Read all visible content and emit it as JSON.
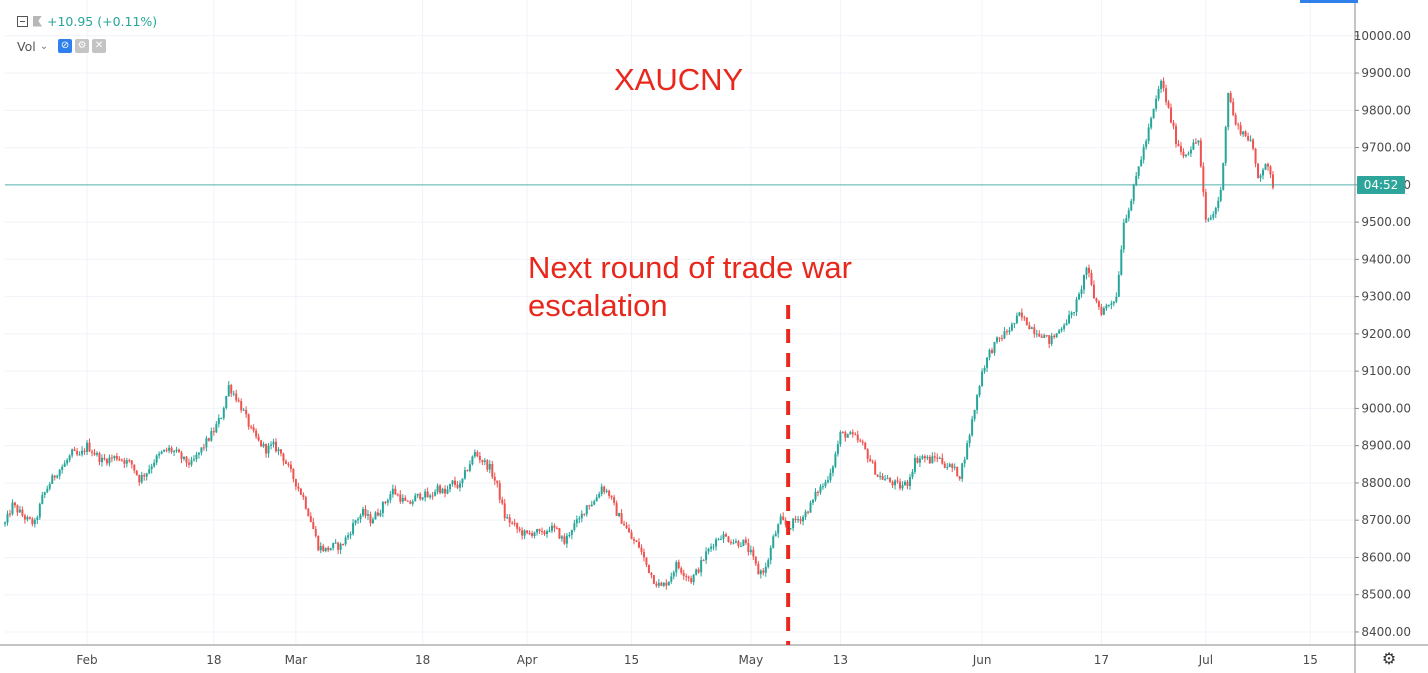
{
  "toolbar": {
    "change_text": "+10.95 (+0.11%)",
    "vol_label": "Vol",
    "caret": "⌄",
    "icons": [
      "collapse-icon",
      "flag-icon",
      "eye-icon",
      "gear-icon",
      "close-icon"
    ]
  },
  "price_badge": "04:52",
  "colors": {
    "up": "#26a69a",
    "down": "#ef5350",
    "annotation": "#e8281c",
    "price_line": "#2ea59a",
    "grid": "#f0f3fa"
  },
  "chart_data": {
    "type": "candlestick",
    "title": "XAUCNY",
    "annotation_lines": [
      "Next round of trade war",
      "escalation"
    ],
    "event_marker_date": "2019-05-06",
    "current_price": 9600,
    "y_ticks": [
      "8400.00",
      "8500.00",
      "8600.00",
      "8700.00",
      "8800.00",
      "8900.00",
      "9000.00",
      "9100.00",
      "9200.00",
      "9300.00",
      "9400.00",
      "9500.00",
      "9600.00",
      "9700.00",
      "9800.00",
      "9900.00",
      "10000.00"
    ],
    "ylim": [
      8365,
      10080
    ],
    "xlim": [
      "2019-01-21",
      "2019-07-21"
    ],
    "x_ticks": [
      {
        "date": "2019-02-01",
        "label": "Feb"
      },
      {
        "date": "2019-02-18",
        "label": "18"
      },
      {
        "date": "2019-03-01",
        "label": "Mar"
      },
      {
        "date": "2019-03-18",
        "label": "18"
      },
      {
        "date": "2019-04-01",
        "label": "Apr"
      },
      {
        "date": "2019-04-15",
        "label": "15"
      },
      {
        "date": "2019-05-01",
        "label": "May"
      },
      {
        "date": "2019-05-13",
        "label": "13"
      },
      {
        "date": "2019-06-01",
        "label": "Jun"
      },
      {
        "date": "2019-06-17",
        "label": "17"
      },
      {
        "date": "2019-07-01",
        "label": "Jul"
      },
      {
        "date": "2019-07-15",
        "label": "15"
      }
    ],
    "close_path": [
      [
        "2019-01-21",
        8690
      ],
      [
        "2019-01-22",
        8740
      ],
      [
        "2019-01-23",
        8720
      ],
      [
        "2019-01-24",
        8700
      ],
      [
        "2019-01-25",
        8690
      ],
      [
        "2019-01-26",
        8760
      ],
      [
        "2019-01-27",
        8800
      ],
      [
        "2019-01-28",
        8830
      ],
      [
        "2019-01-29",
        8850
      ],
      [
        "2019-01-30",
        8880
      ],
      [
        "2019-01-31",
        8870
      ],
      [
        "2019-02-01",
        8900
      ],
      [
        "2019-02-02",
        8880
      ],
      [
        "2019-02-03",
        8860
      ],
      [
        "2019-02-04",
        8865
      ],
      [
        "2019-02-05",
        8870
      ],
      [
        "2019-02-06",
        8860
      ],
      [
        "2019-02-07",
        8850
      ],
      [
        "2019-02-08",
        8810
      ],
      [
        "2019-02-09",
        8830
      ],
      [
        "2019-02-10",
        8860
      ],
      [
        "2019-02-11",
        8880
      ],
      [
        "2019-02-12",
        8890
      ],
      [
        "2019-02-13",
        8880
      ],
      [
        "2019-02-14",
        8860
      ],
      [
        "2019-02-15",
        8850
      ],
      [
        "2019-02-16",
        8880
      ],
      [
        "2019-02-17",
        8910
      ],
      [
        "2019-02-18",
        8940
      ],
      [
        "2019-02-19",
        8980
      ],
      [
        "2019-02-20",
        9060
      ],
      [
        "2019-02-21",
        9030
      ],
      [
        "2019-02-22",
        8990
      ],
      [
        "2019-02-23",
        8940
      ],
      [
        "2019-02-24",
        8910
      ],
      [
        "2019-02-25",
        8890
      ],
      [
        "2019-02-26",
        8900
      ],
      [
        "2019-02-27",
        8880
      ],
      [
        "2019-02-28",
        8840
      ],
      [
        "2019-03-01",
        8800
      ],
      [
        "2019-03-02",
        8760
      ],
      [
        "2019-03-03",
        8700
      ],
      [
        "2019-03-04",
        8630
      ],
      [
        "2019-03-05",
        8620
      ],
      [
        "2019-03-06",
        8630
      ],
      [
        "2019-03-07",
        8630
      ],
      [
        "2019-03-08",
        8660
      ],
      [
        "2019-03-09",
        8700
      ],
      [
        "2019-03-10",
        8720
      ],
      [
        "2019-03-11",
        8700
      ],
      [
        "2019-03-12",
        8720
      ],
      [
        "2019-03-13",
        8750
      ],
      [
        "2019-03-14",
        8780
      ],
      [
        "2019-03-15",
        8760
      ],
      [
        "2019-03-16",
        8740
      ],
      [
        "2019-03-17",
        8760
      ],
      [
        "2019-03-18",
        8770
      ],
      [
        "2019-03-19",
        8760
      ],
      [
        "2019-03-20",
        8790
      ],
      [
        "2019-03-21",
        8770
      ],
      [
        "2019-03-22",
        8800
      ],
      [
        "2019-03-23",
        8790
      ],
      [
        "2019-03-24",
        8840
      ],
      [
        "2019-03-25",
        8880
      ],
      [
        "2019-03-26",
        8860
      ],
      [
        "2019-03-27",
        8840
      ],
      [
        "2019-03-28",
        8790
      ],
      [
        "2019-03-29",
        8710
      ],
      [
        "2019-03-30",
        8690
      ],
      [
        "2019-03-31",
        8670
      ],
      [
        "2019-04-01",
        8660
      ],
      [
        "2019-04-02",
        8670
      ],
      [
        "2019-04-03",
        8660
      ],
      [
        "2019-04-04",
        8680
      ],
      [
        "2019-04-05",
        8670
      ],
      [
        "2019-04-06",
        8640
      ],
      [
        "2019-04-07",
        8680
      ],
      [
        "2019-04-08",
        8700
      ],
      [
        "2019-04-09",
        8740
      ],
      [
        "2019-04-10",
        8750
      ],
      [
        "2019-04-11",
        8790
      ],
      [
        "2019-04-12",
        8770
      ],
      [
        "2019-04-13",
        8720
      ],
      [
        "2019-04-14",
        8690
      ],
      [
        "2019-04-15",
        8650
      ],
      [
        "2019-04-16",
        8630
      ],
      [
        "2019-04-17",
        8580
      ],
      [
        "2019-04-18",
        8540
      ],
      [
        "2019-04-19",
        8520
      ],
      [
        "2019-04-20",
        8540
      ],
      [
        "2019-04-21",
        8580
      ],
      [
        "2019-04-22",
        8560
      ],
      [
        "2019-04-23",
        8540
      ],
      [
        "2019-04-24",
        8570
      ],
      [
        "2019-04-25",
        8610
      ],
      [
        "2019-04-26",
        8640
      ],
      [
        "2019-04-27",
        8660
      ],
      [
        "2019-04-28",
        8650
      ],
      [
        "2019-04-29",
        8640
      ],
      [
        "2019-04-30",
        8640
      ],
      [
        "2019-05-01",
        8610
      ],
      [
        "2019-05-02",
        8560
      ],
      [
        "2019-05-03",
        8570
      ],
      [
        "2019-05-04",
        8650
      ],
      [
        "2019-05-05",
        8700
      ],
      [
        "2019-05-06",
        8680
      ],
      [
        "2019-05-07",
        8700
      ],
      [
        "2019-05-08",
        8710
      ],
      [
        "2019-05-09",
        8740
      ],
      [
        "2019-05-10",
        8780
      ],
      [
        "2019-05-11",
        8800
      ],
      [
        "2019-05-12",
        8850
      ],
      [
        "2019-05-13",
        8930
      ],
      [
        "2019-05-14",
        8930
      ],
      [
        "2019-05-15",
        8920
      ],
      [
        "2019-05-16",
        8900
      ],
      [
        "2019-05-17",
        8860
      ],
      [
        "2019-05-18",
        8820
      ],
      [
        "2019-05-19",
        8810
      ],
      [
        "2019-05-20",
        8800
      ],
      [
        "2019-05-21",
        8790
      ],
      [
        "2019-05-22",
        8800
      ],
      [
        "2019-05-23",
        8860
      ],
      [
        "2019-05-24",
        8870
      ],
      [
        "2019-05-25",
        8860
      ],
      [
        "2019-05-26",
        8870
      ],
      [
        "2019-05-27",
        8850
      ],
      [
        "2019-05-28",
        8840
      ],
      [
        "2019-05-29",
        8820
      ],
      [
        "2019-05-30",
        8900
      ],
      [
        "2019-05-31",
        9000
      ],
      [
        "2019-06-01",
        9100
      ],
      [
        "2019-06-02",
        9150
      ],
      [
        "2019-06-03",
        9180
      ],
      [
        "2019-06-04",
        9200
      ],
      [
        "2019-06-05",
        9220
      ],
      [
        "2019-06-06",
        9250
      ],
      [
        "2019-06-07",
        9230
      ],
      [
        "2019-06-08",
        9210
      ],
      [
        "2019-06-09",
        9200
      ],
      [
        "2019-06-10",
        9180
      ],
      [
        "2019-06-11",
        9200
      ],
      [
        "2019-06-12",
        9230
      ],
      [
        "2019-06-13",
        9250
      ],
      [
        "2019-06-14",
        9300
      ],
      [
        "2019-06-15",
        9380
      ],
      [
        "2019-06-16",
        9300
      ],
      [
        "2019-06-17",
        9260
      ],
      [
        "2019-06-18",
        9280
      ],
      [
        "2019-06-19",
        9300
      ],
      [
        "2019-06-20",
        9500
      ],
      [
        "2019-06-21",
        9560
      ],
      [
        "2019-06-22",
        9650
      ],
      [
        "2019-06-23",
        9720
      ],
      [
        "2019-06-24",
        9800
      ],
      [
        "2019-06-25",
        9880
      ],
      [
        "2019-06-26",
        9800
      ],
      [
        "2019-06-27",
        9720
      ],
      [
        "2019-06-28",
        9680
      ],
      [
        "2019-06-29",
        9700
      ],
      [
        "2019-06-30",
        9720
      ],
      [
        "2019-07-01",
        9500
      ],
      [
        "2019-07-02",
        9520
      ],
      [
        "2019-07-03",
        9580
      ],
      [
        "2019-07-04",
        9850
      ],
      [
        "2019-07-05",
        9760
      ],
      [
        "2019-07-06",
        9740
      ],
      [
        "2019-07-07",
        9720
      ],
      [
        "2019-07-08",
        9620
      ],
      [
        "2019-07-09",
        9660
      ],
      [
        "2019-07-10",
        9600
      ]
    ]
  }
}
